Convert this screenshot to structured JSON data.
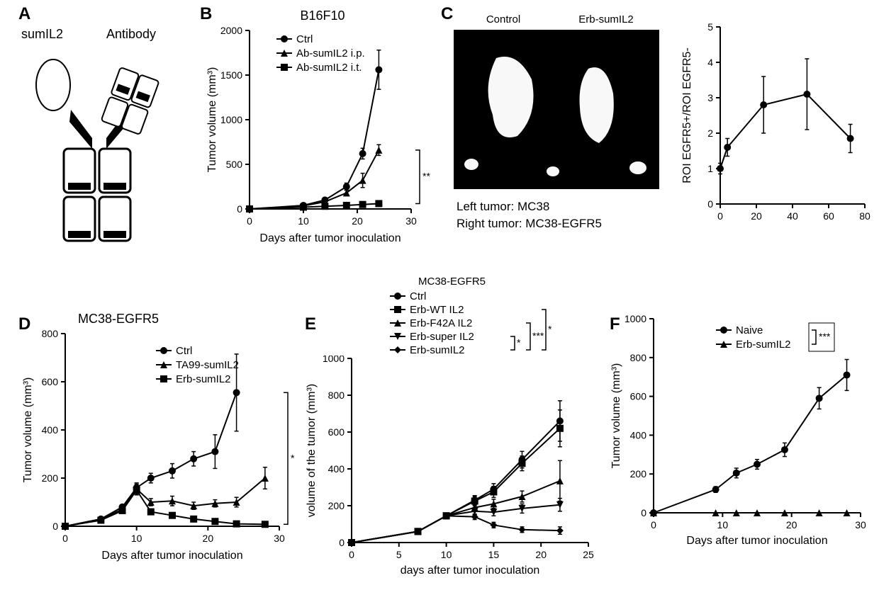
{
  "panelLabels": {
    "A": "A",
    "B": "B",
    "C": "C",
    "D": "D",
    "E": "E",
    "F": "F"
  },
  "A": {
    "label_left": "sumIL2",
    "label_right": "Antibody"
  },
  "B": {
    "type": "line",
    "title": "B16F10",
    "xlabel": "Days after tumor inoculation",
    "ylabel": "Tumor volume (mm³)",
    "xlim": [
      0,
      30
    ],
    "xtick_step": 10,
    "ylim": [
      0,
      2000
    ],
    "ytick_step": 500,
    "series": [
      {
        "name": "Ctrl",
        "marker": "circle",
        "x": [
          0,
          10,
          14,
          18,
          21,
          24
        ],
        "y": [
          0,
          40,
          100,
          250,
          620,
          1560
        ],
        "err": [
          0,
          10,
          20,
          40,
          60,
          220
        ]
      },
      {
        "name": "Ab-sumIL2 i.p.",
        "marker": "triangle",
        "x": [
          0,
          10,
          14,
          18,
          21,
          24
        ],
        "y": [
          0,
          35,
          80,
          180,
          320,
          660
        ],
        "err": [
          0,
          10,
          20,
          30,
          80,
          60
        ]
      },
      {
        "name": "Ab-sumIL2 i.t.",
        "marker": "square",
        "x": [
          0,
          10,
          14,
          18,
          21,
          24
        ],
        "y": [
          0,
          20,
          30,
          40,
          50,
          60
        ],
        "err": [
          0,
          8,
          8,
          10,
          10,
          15
        ]
      }
    ],
    "sig": [
      {
        "text": "**",
        "from": 1,
        "to": 2
      }
    ],
    "line_color": "#000000",
    "marker_fill": "#000000",
    "background": "#ffffff"
  },
  "C": {
    "header_left": "Control",
    "header_right": "Erb-sumIL2",
    "image_caption1": "Left tumor: MC38",
    "image_caption2": "Right tumor: MC38-EGFR5",
    "chart": {
      "type": "line",
      "ylabel": "ROI EGFR5+/ROI EGFR5-",
      "xlim": [
        0,
        80
      ],
      "xtick_step": 20,
      "ylim": [
        0,
        5
      ],
      "ytick_step": 1,
      "series": [
        {
          "name": "ratio",
          "marker": "circle",
          "x": [
            0,
            4,
            24,
            48,
            72
          ],
          "y": [
            1.0,
            1.6,
            2.8,
            3.1,
            1.85
          ],
          "err": [
            0.15,
            0.25,
            0.8,
            1.0,
            0.4
          ]
        }
      ],
      "line_color": "#000000"
    }
  },
  "D": {
    "type": "line",
    "title": "MC38-EGFR5",
    "xlabel": "Days after tumor inoculation",
    "ylabel": "Tumor volume (mm³)",
    "xlim": [
      0,
      30
    ],
    "xtick_step": 10,
    "ylim": [
      0,
      800
    ],
    "ytick_step": 200,
    "series": [
      {
        "name": "Ctrl",
        "marker": "circle",
        "x": [
          0,
          5,
          8,
          10,
          12,
          15,
          18,
          21,
          24
        ],
        "y": [
          0,
          30,
          80,
          160,
          200,
          230,
          280,
          310,
          555
        ],
        "err": [
          0,
          5,
          10,
          20,
          20,
          30,
          30,
          70,
          160
        ]
      },
      {
        "name": "TA99-sumIL2",
        "marker": "triangle",
        "x": [
          0,
          5,
          8,
          10,
          12,
          15,
          18,
          21,
          24,
          28
        ],
        "y": [
          0,
          30,
          70,
          155,
          100,
          105,
          85,
          95,
          100,
          200
        ],
        "err": [
          0,
          5,
          10,
          20,
          15,
          20,
          15,
          15,
          20,
          45
        ]
      },
      {
        "name": "Erb-sumIL2",
        "marker": "square",
        "x": [
          0,
          5,
          8,
          10,
          12,
          15,
          18,
          21,
          24,
          28
        ],
        "y": [
          0,
          25,
          65,
          150,
          60,
          45,
          30,
          20,
          10,
          8
        ],
        "err": [
          0,
          5,
          10,
          20,
          12,
          10,
          10,
          8,
          6,
          5
        ]
      }
    ],
    "sig": [
      {
        "text": "*",
        "from": 0,
        "to": 2
      }
    ],
    "line_color": "#000000"
  },
  "E": {
    "type": "line",
    "title": "MC38-EGFR5",
    "xlabel": "days after tumor inoculation",
    "ylabel": "volume of the tumor (mm³)",
    "xlim": [
      0,
      25
    ],
    "xtick_step": 5,
    "ylim": [
      0,
      1000
    ],
    "ytick_step": 200,
    "series": [
      {
        "name": "Ctrl",
        "marker": "circle",
        "x": [
          0,
          7,
          10,
          13,
          15,
          18,
          22
        ],
        "y": [
          0,
          60,
          145,
          230,
          290,
          450,
          660
        ],
        "err": [
          0,
          10,
          15,
          25,
          30,
          45,
          110
        ]
      },
      {
        "name": "Erb-WT IL2",
        "marker": "square",
        "x": [
          0,
          7,
          10,
          13,
          15,
          18,
          22
        ],
        "y": [
          0,
          60,
          145,
          225,
          275,
          430,
          620
        ],
        "err": [
          0,
          10,
          15,
          25,
          30,
          40,
          100
        ]
      },
      {
        "name": "Erb-F42A IL2",
        "marker": "triangle",
        "x": [
          0,
          7,
          10,
          13,
          15,
          18,
          22
        ],
        "y": [
          0,
          60,
          145,
          190,
          210,
          250,
          335
        ],
        "err": [
          0,
          10,
          15,
          20,
          25,
          30,
          110
        ]
      },
      {
        "name": "Erb-super IL2",
        "marker": "tridown",
        "x": [
          0,
          7,
          10,
          13,
          15,
          18,
          22
        ],
        "y": [
          0,
          60,
          145,
          170,
          165,
          185,
          205
        ],
        "err": [
          0,
          10,
          15,
          20,
          20,
          25,
          35
        ]
      },
      {
        "name": "Erb-sumIL2",
        "marker": "diamond",
        "x": [
          0,
          7,
          10,
          13,
          15,
          18,
          22
        ],
        "y": [
          0,
          60,
          145,
          140,
          95,
          70,
          65
        ],
        "err": [
          0,
          10,
          15,
          15,
          15,
          15,
          20
        ]
      }
    ],
    "sig": [
      {
        "text": "*",
        "from": 3,
        "to": 4
      },
      {
        "text": "***",
        "from": 2,
        "to": 4
      },
      {
        "text": "*",
        "from": 1,
        "to": 4
      }
    ],
    "line_color": "#000000"
  },
  "F": {
    "type": "line",
    "xlabel": "Days after tumor inoculation",
    "ylabel": "Tumor volume (mm³)",
    "xlim": [
      0,
      30
    ],
    "xtick_step": 10,
    "ylim": [
      0,
      1000
    ],
    "ytick_step": 200,
    "series": [
      {
        "name": "Naive",
        "marker": "circle",
        "x": [
          0,
          9,
          12,
          15,
          19,
          24,
          28
        ],
        "y": [
          0,
          120,
          205,
          250,
          325,
          590,
          710
        ],
        "err": [
          0,
          15,
          25,
          25,
          35,
          55,
          80
        ]
      },
      {
        "name": "Erb-sumIL2",
        "marker": "triangle",
        "x": [
          0,
          9,
          12,
          15,
          19,
          24,
          28
        ],
        "y": [
          0,
          0,
          0,
          0,
          0,
          0,
          0
        ],
        "err": [
          0,
          0,
          0,
          0,
          0,
          0,
          0
        ]
      }
    ],
    "sig": [
      {
        "text": "***",
        "from": 0,
        "to": 1
      }
    ],
    "line_color": "#000000"
  }
}
